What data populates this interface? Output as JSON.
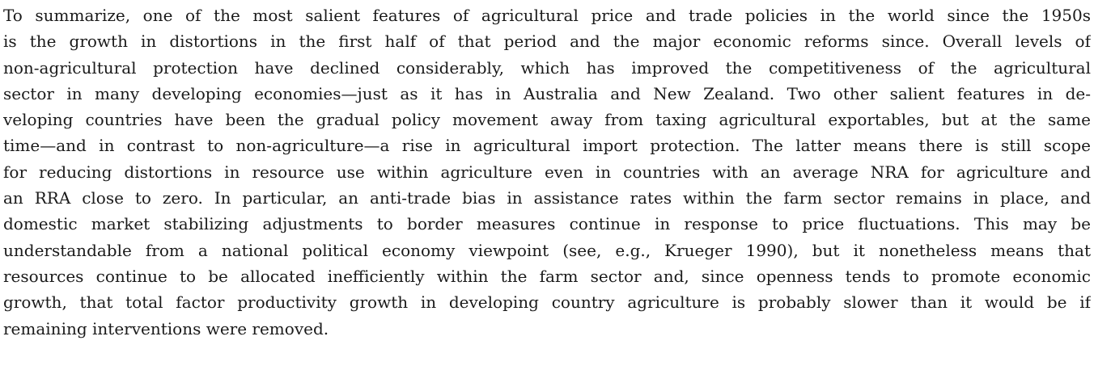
{
  "paragraph": {
    "lines": [
      "To summarize, one of the most salient features of agricultural price and trade policies in the world since the 1950s",
      "is the growth in distortions in the first half of that period and the major economic reforms since. Overall levels of",
      "non-agricultural protection have declined considerably, which has improved the competitiveness of the agricultural",
      "sector in many developing economies—just as it has in Australia and New Zealand. Two other salient features in de-",
      "veloping countries have been the gradual policy movement away from taxing agricultural exportables, but at the same",
      "time—and in contrast to non-agriculture—a rise in agricultural import protection. The latter means there is still scope",
      "for reducing distortions in resource use within agriculture even in countries with an average NRA for agriculture and",
      "an RRA close to zero. In particular, an anti-trade bias in assistance rates within the farm sector remains in place, and",
      "domestic market stabilizing adjustments to border measures continue in response to price fluctuations. This may be",
      "understandable from a national political economy viewpoint (see, e.g., Krueger 1990), but it nonetheless means that",
      "resources continue to be allocated inefficiently within the farm sector and, since openness tends to promote economic",
      "growth, that total factor productivity growth in developing country agriculture is probably slower than it would be if",
      "remaining interventions were removed."
    ]
  }
}
